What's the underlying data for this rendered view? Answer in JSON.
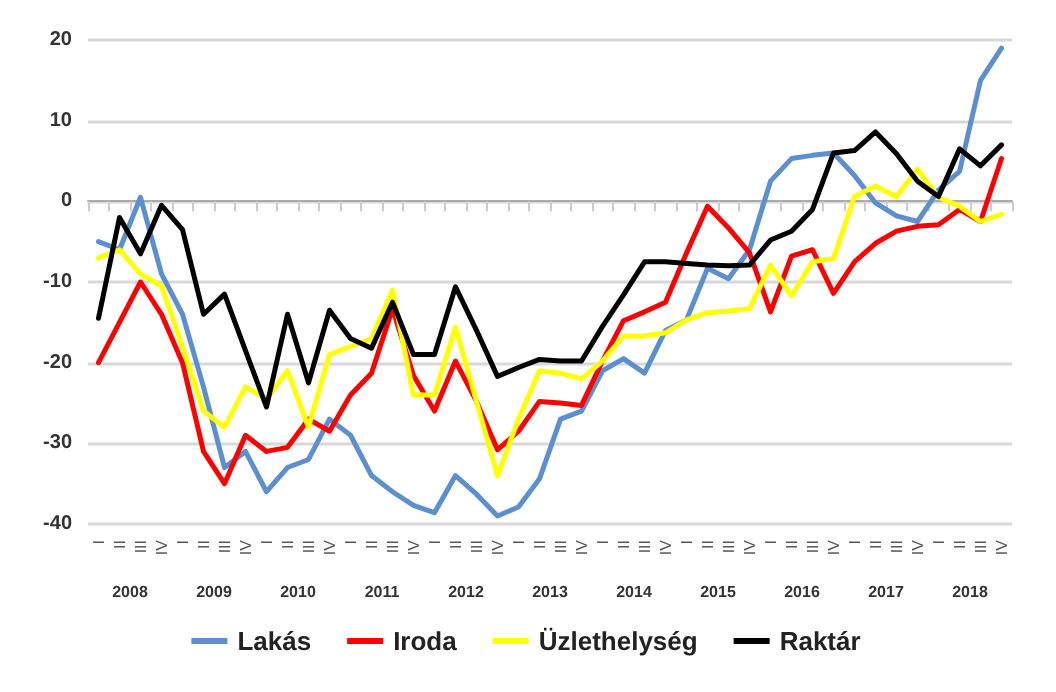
{
  "chart_data": {
    "type": "line",
    "categories": [
      "I",
      "II",
      "III",
      "IV",
      "I",
      "II",
      "III",
      "IV",
      "I",
      "II",
      "III",
      "IV",
      "I",
      "II",
      "III",
      "IV",
      "I",
      "II",
      "III",
      "IV",
      "I",
      "II",
      "III",
      "IV",
      "I",
      "II",
      "III",
      "IV",
      "I",
      "II",
      "III",
      "IV",
      "I",
      "II",
      "III",
      "IV",
      "I",
      "II",
      "III",
      "IV",
      "I",
      "II",
      "III",
      "IV"
    ],
    "annotations": [
      "2008",
      "2009",
      "2010",
      "2011",
      "2012",
      "2013",
      "2014",
      "2015",
      "2016",
      "2017",
      "2018"
    ],
    "series": [
      {
        "name": "Lakás",
        "color": "#5b8fd0",
        "values": [
          -5,
          -6,
          0.5,
          -9,
          -14,
          -23,
          -33,
          -31,
          -36,
          -33,
          -32,
          -27,
          -29,
          -34,
          -36,
          -37.7,
          -38.6,
          -34,
          -36.3,
          -39,
          -37.9,
          -34.4,
          -27,
          -26,
          -21,
          -19.5,
          -21.3,
          -16,
          -14.7,
          -8.3,
          -9.6,
          -6,
          2.5,
          5.3,
          5.7,
          6,
          3.2,
          -0.2,
          -1.8,
          -2.5,
          1.4,
          3.7,
          15,
          19
        ]
      },
      {
        "name": "Iroda",
        "color": "#ff0000",
        "values": [
          -20,
          -15,
          -10,
          -14,
          -20,
          -31,
          -35,
          -29,
          -31,
          -30.5,
          -27,
          -28.5,
          -24,
          -21.3,
          -13.3,
          -21.6,
          -26,
          -19.8,
          -24.8,
          -30.8,
          -28.5,
          -24.8,
          -25,
          -25.3,
          -19.8,
          -14.8,
          -13.7,
          -12.5,
          -6.4,
          -0.6,
          -3.3,
          -6.4,
          -13.7,
          -6.8,
          -6,
          -11.4,
          -7.5,
          -5.2,
          -3.7,
          -3.1,
          -2.9,
          -1,
          -2.5,
          5.3
        ]
      },
      {
        "name": "Üzlethelység",
        "color": "#ffff00",
        "values": [
          -7,
          -6,
          -9,
          -10.5,
          -18,
          -26,
          -28,
          -23,
          -24.5,
          -21,
          -28,
          -19,
          -18,
          -17,
          -11,
          -24,
          -24,
          -15.6,
          -24.8,
          -34,
          -27,
          -21,
          -21.3,
          -22,
          -19.8,
          -16.7,
          -16.7,
          -16.3,
          -14.7,
          -13.8,
          -13.6,
          -13.3,
          -7.9,
          -11.7,
          -7.5,
          -7.1,
          0.6,
          1.9,
          0.6,
          4,
          0.5,
          -0.6,
          -2.5,
          -1.6
        ]
      },
      {
        "name": "Raktár",
        "color": "#000000",
        "values": [
          -14.5,
          -2,
          -6.5,
          -0.5,
          -3.5,
          -14,
          -11.5,
          -18.5,
          -25.5,
          -14,
          -22.5,
          -13.5,
          -17,
          -18.2,
          -12.5,
          -19,
          -19,
          -10.6,
          -16,
          -21.7,
          -20.6,
          -19.6,
          -19.8,
          -19.8,
          -15.5,
          -11.6,
          -7.5,
          -7.5,
          -7.7,
          -7.9,
          -8,
          -7.9,
          -4.8,
          -3.7,
          -1,
          6,
          6.3,
          8.6,
          5.9,
          2.5,
          0.6,
          6.5,
          4.4,
          7
        ]
      }
    ],
    "ylim": [
      -40,
      20
    ],
    "yticks": [
      -40,
      -30,
      -20,
      -10,
      0,
      10,
      20
    ],
    "grid": "y",
    "legend": "bottom",
    "marker": "none",
    "line_style": "solid"
  }
}
